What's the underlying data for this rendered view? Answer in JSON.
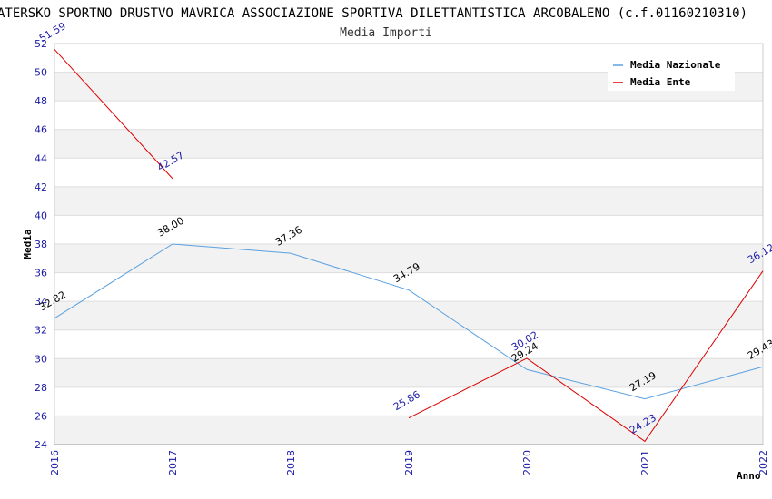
{
  "chart_data": {
    "type": "line",
    "title": "ATERSKO SPORTNO DRUSTVO MAVRICA ASSOCIAZIONE SPORTIVA DILETTANTISTICA ARCOBALENO (c.f.01160210310)",
    "subtitle": "Media Importi",
    "xlabel": "Anno",
    "ylabel": "Media",
    "categories": [
      "2016",
      "2017",
      "2018",
      "2019",
      "2020",
      "2021",
      "2022"
    ],
    "ylim": [
      24,
      52
    ],
    "yticks": [
      24,
      26,
      28,
      30,
      32,
      34,
      36,
      38,
      40,
      42,
      44,
      46,
      48,
      50,
      52
    ],
    "grid": true,
    "legend_position": "top-right",
    "series": [
      {
        "name": "Media Nazionale",
        "color": "#5aa0e0",
        "label_color": "#000000",
        "values": [
          32.82,
          38.0,
          37.36,
          34.79,
          29.24,
          27.19,
          29.43
        ],
        "labels": [
          "32.82",
          "38.00",
          "37.36",
          "34.79",
          "29.24",
          "27.19",
          "29.43"
        ]
      },
      {
        "name": "Media Ente",
        "color": "#dd0000",
        "label_color": "#1a1aa6",
        "values": [
          51.59,
          42.57,
          null,
          25.86,
          30.02,
          24.23,
          36.12
        ],
        "labels": [
          "51.59",
          "42.57",
          "",
          "25.86",
          "30.02",
          "24.23",
          "36.12"
        ]
      }
    ]
  }
}
